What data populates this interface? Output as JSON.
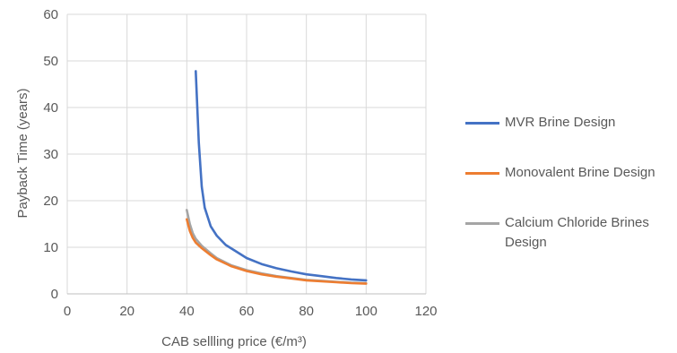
{
  "chart_data": {
    "type": "line",
    "title": "",
    "xlabel": "CAB sellling price (€/m³)",
    "ylabel": "Payback Time (years)",
    "xlim": [
      0,
      120
    ],
    "ylim": [
      0,
      60
    ],
    "x_ticks": [
      "0",
      "20",
      "40",
      "60",
      "80",
      "100",
      "120"
    ],
    "y_ticks": [
      "0",
      "10",
      "20",
      "30",
      "40",
      "50",
      "60"
    ],
    "grid": true,
    "legend_position": "right",
    "series": [
      {
        "name": "MVR Brine Design",
        "color": "#4472C4",
        "x": [
          43,
          44,
          45,
          46,
          48,
          50,
          53,
          56,
          60,
          65,
          70,
          75,
          80,
          85,
          90,
          95,
          100
        ],
        "y": [
          47.8,
          32.5,
          23.0,
          18.5,
          14.5,
          12.5,
          10.5,
          9.3,
          7.7,
          6.4,
          5.5,
          4.8,
          4.2,
          3.8,
          3.4,
          3.1,
          2.9
        ]
      },
      {
        "name": "Monovalent Brine Design",
        "color": "#ED7D31",
        "x": [
          40,
          41,
          42,
          43,
          45,
          48,
          50,
          55,
          60,
          65,
          70,
          75,
          80,
          85,
          90,
          95,
          100
        ],
        "y": [
          16.0,
          13.5,
          12.0,
          11.0,
          9.8,
          8.3,
          7.4,
          5.9,
          4.9,
          4.2,
          3.7,
          3.3,
          2.9,
          2.7,
          2.5,
          2.3,
          2.2
        ]
      },
      {
        "name": "Calcium Chloride Brines Design",
        "color": "#A5A5A5",
        "x": [
          40,
          41,
          42,
          43,
          45,
          48,
          50,
          55,
          60,
          65,
          70,
          75,
          80,
          85,
          90,
          95,
          100
        ],
        "y": [
          18.0,
          15.0,
          13.0,
          11.8,
          10.3,
          8.7,
          7.7,
          6.1,
          5.1,
          4.4,
          3.8,
          3.4,
          3.0,
          2.8,
          2.6,
          2.4,
          2.3
        ]
      }
    ]
  },
  "legend": {
    "items": [
      {
        "label": "MVR Brine Design",
        "color": "#4472C4"
      },
      {
        "label": "Monovalent Brine Design",
        "color": "#ED7D31"
      },
      {
        "label": "Calcium Chloride Brines Design",
        "color": "#A5A5A5"
      }
    ]
  }
}
